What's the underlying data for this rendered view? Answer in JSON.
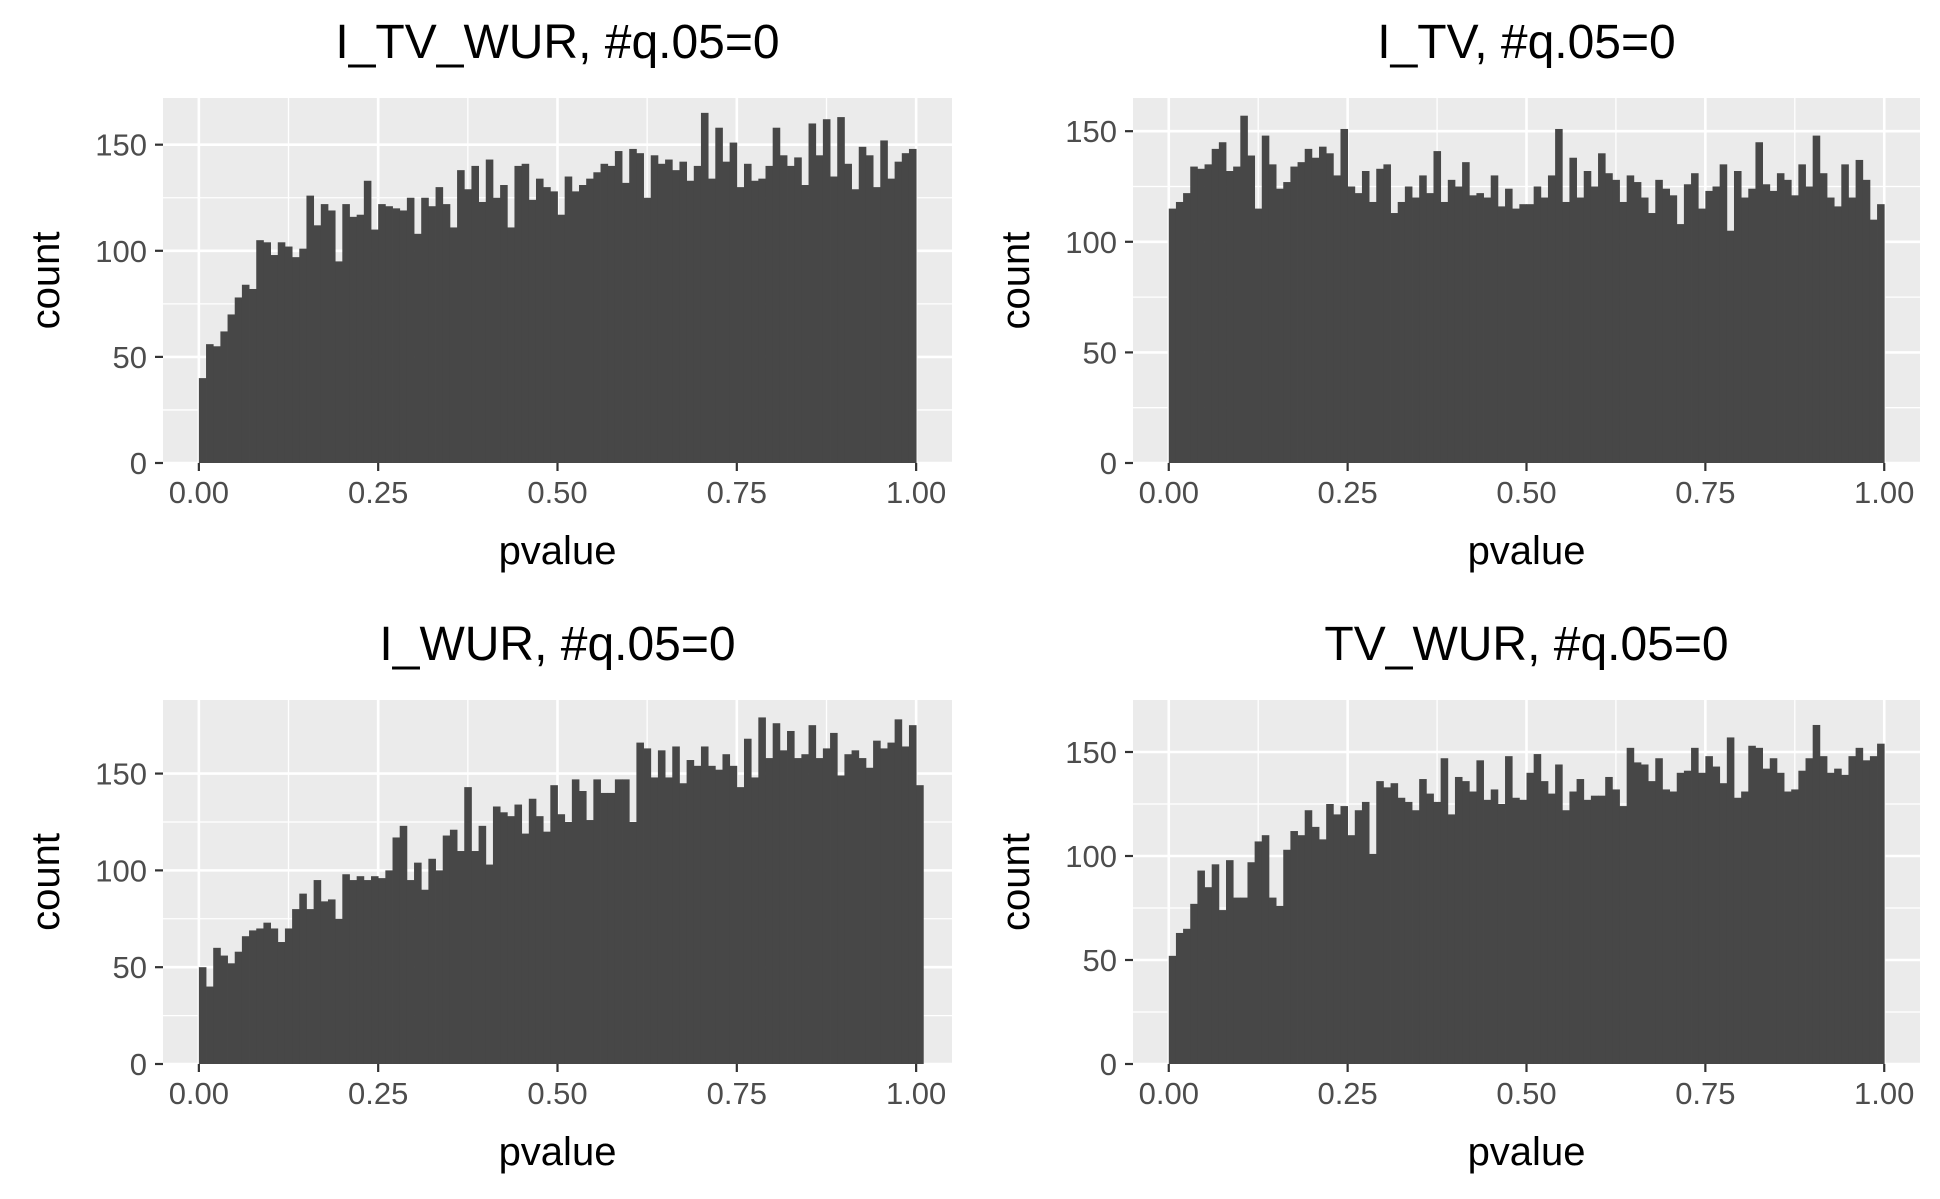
{
  "chart_data": [
    {
      "type": "bar",
      "title": "I_TV_WUR, #q.05=0",
      "xlabel": "pvalue",
      "ylabel": "count",
      "xlim": [
        -0.05,
        1.05
      ],
      "ylim": [
        0,
        172
      ],
      "x_ticks": [
        {
          "value": 0,
          "label": "0.00"
        },
        {
          "value": 0.25,
          "label": "0.25"
        },
        {
          "value": 0.5,
          "label": "0.50"
        },
        {
          "value": 0.75,
          "label": "0.75"
        },
        {
          "value": 1,
          "label": "1.00"
        }
      ],
      "y_ticks": [
        {
          "value": 0,
          "label": "0"
        },
        {
          "value": 50,
          "label": "50"
        },
        {
          "value": 100,
          "label": "100"
        },
        {
          "value": 150,
          "label": "150"
        }
      ],
      "bin_width": 0.01,
      "bin_start": 0,
      "values": [
        40,
        56,
        55,
        62,
        70,
        78,
        84,
        82,
        105,
        104,
        98,
        104,
        102,
        97,
        101,
        126,
        112,
        122,
        119,
        95,
        122,
        116,
        117,
        133,
        110,
        122,
        121,
        120,
        119,
        125,
        108,
        125,
        121,
        130,
        122,
        111,
        138,
        129,
        140,
        123,
        143,
        125,
        131,
        111,
        140,
        141,
        124,
        134,
        130,
        128,
        117,
        135,
        128,
        131,
        134,
        137,
        141,
        140,
        147,
        132,
        148,
        146,
        125,
        145,
        141,
        143,
        138,
        142,
        133,
        140,
        165,
        134,
        158,
        142,
        151,
        130,
        141,
        133,
        134,
        140,
        158,
        145,
        140,
        144,
        131,
        160,
        145,
        162,
        135,
        163,
        141,
        129,
        149,
        145,
        130,
        152,
        134,
        142,
        146,
        148
      ]
    },
    {
      "type": "bar",
      "title": "I_TV, #q.05=0",
      "xlabel": "pvalue",
      "ylabel": "count",
      "xlim": [
        -0.05,
        1.05
      ],
      "ylim": [
        0,
        165
      ],
      "x_ticks": [
        {
          "value": 0,
          "label": "0.00"
        },
        {
          "value": 0.25,
          "label": "0.25"
        },
        {
          "value": 0.5,
          "label": "0.50"
        },
        {
          "value": 0.75,
          "label": "0.75"
        },
        {
          "value": 1,
          "label": "1.00"
        }
      ],
      "y_ticks": [
        {
          "value": 0,
          "label": "0"
        },
        {
          "value": 50,
          "label": "50"
        },
        {
          "value": 100,
          "label": "100"
        },
        {
          "value": 150,
          "label": "150"
        }
      ],
      "bin_width": 0.01,
      "bin_start": 0,
      "values": [
        115,
        118,
        122,
        134,
        133,
        135,
        142,
        145,
        132,
        134,
        157,
        139,
        115,
        148,
        135,
        124,
        127,
        134,
        136,
        142,
        138,
        143,
        140,
        130,
        151,
        125,
        122,
        132,
        118,
        133,
        135,
        113,
        118,
        125,
        120,
        130,
        122,
        141,
        118,
        128,
        125,
        136,
        121,
        122,
        120,
        130,
        116,
        124,
        115,
        117,
        117,
        125,
        120,
        130,
        151,
        118,
        138,
        120,
        132,
        125,
        140,
        131,
        128,
        118,
        130,
        127,
        120,
        113,
        128,
        124,
        121,
        108,
        126,
        131,
        115,
        123,
        125,
        135,
        105,
        132,
        120,
        124,
        145,
        126,
        123,
        131,
        128,
        121,
        135,
        125,
        148,
        131,
        120,
        116,
        135,
        120,
        137,
        128,
        110,
        117
      ]
    },
    {
      "type": "bar",
      "title": "I_WUR, #q.05=0",
      "xlabel": "pvalue",
      "ylabel": "count",
      "xlim": [
        -0.05,
        1.05
      ],
      "ylim": [
        0,
        188
      ],
      "x_ticks": [
        {
          "value": 0,
          "label": "0.00"
        },
        {
          "value": 0.25,
          "label": "0.25"
        },
        {
          "value": 0.5,
          "label": "0.50"
        },
        {
          "value": 0.75,
          "label": "0.75"
        },
        {
          "value": 1,
          "label": "1.00"
        }
      ],
      "y_ticks": [
        {
          "value": 0,
          "label": "0"
        },
        {
          "value": 50,
          "label": "50"
        },
        {
          "value": 100,
          "label": "100"
        },
        {
          "value": 150,
          "label": "150"
        }
      ],
      "bin_width": 0.01,
      "bin_start": 0,
      "values": [
        50,
        40,
        60,
        56,
        52,
        58,
        66,
        69,
        70,
        73,
        70,
        63,
        70,
        80,
        88,
        80,
        95,
        84,
        85,
        75,
        98,
        95,
        97,
        95,
        97,
        96,
        100,
        117,
        123,
        95,
        104,
        90,
        106,
        100,
        118,
        121,
        110,
        143,
        110,
        123,
        103,
        133,
        130,
        128,
        134,
        119,
        137,
        128,
        120,
        144,
        129,
        125,
        147,
        141,
        126,
        147,
        140,
        140,
        147,
        147,
        125,
        166,
        163,
        148,
        162,
        148,
        164,
        145,
        157,
        154,
        164,
        154,
        152,
        160,
        154,
        143,
        168,
        148,
        179,
        158,
        176,
        162,
        172,
        158,
        160,
        175,
        158,
        163,
        171,
        149,
        160,
        162,
        158,
        153,
        167,
        163,
        166,
        178,
        164,
        175,
        144
      ]
    },
    {
      "type": "bar",
      "title": "TV_WUR, #q.05=0",
      "xlabel": "pvalue",
      "ylabel": "count",
      "xlim": [
        -0.05,
        1.05
      ],
      "ylim": [
        0,
        175
      ],
      "x_ticks": [
        {
          "value": 0,
          "label": "0.00"
        },
        {
          "value": 0.25,
          "label": "0.25"
        },
        {
          "value": 0.5,
          "label": "0.50"
        },
        {
          "value": 0.75,
          "label": "0.75"
        },
        {
          "value": 1,
          "label": "1.00"
        }
      ],
      "y_ticks": [
        {
          "value": 0,
          "label": "0"
        },
        {
          "value": 50,
          "label": "50"
        },
        {
          "value": 100,
          "label": "100"
        },
        {
          "value": 150,
          "label": "150"
        }
      ],
      "bin_width": 0.01,
      "bin_start": 0,
      "values": [
        52,
        63,
        65,
        77,
        93,
        85,
        96,
        74,
        98,
        80,
        80,
        97,
        107,
        110,
        80,
        76,
        103,
        112,
        110,
        122,
        114,
        108,
        125,
        120,
        124,
        110,
        122,
        126,
        101,
        136,
        133,
        135,
        128,
        126,
        122,
        137,
        130,
        126,
        147,
        120,
        138,
        136,
        131,
        146,
        127,
        132,
        125,
        148,
        128,
        127,
        140,
        149,
        136,
        130,
        144,
        122,
        131,
        137,
        127,
        129,
        129,
        138,
        132,
        124,
        152,
        145,
        144,
        136,
        147,
        132,
        131,
        140,
        141,
        152,
        140,
        148,
        143,
        135,
        157,
        128,
        131,
        153,
        152,
        142,
        147,
        140,
        131,
        132,
        141,
        147,
        163,
        148,
        140,
        142,
        139,
        148,
        152,
        146,
        148,
        154
      ]
    }
  ]
}
